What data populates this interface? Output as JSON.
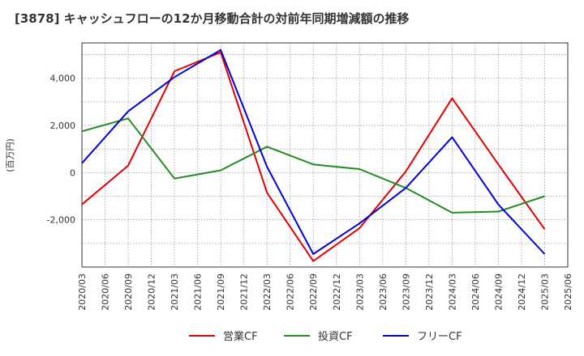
{
  "chart_data": {
    "type": "line",
    "title": "[3878]  キャッシュフローの12か月移動合計の対前年同期増減額の推移",
    "ylabel": "(百万円)",
    "xlabel": "",
    "x": [
      "2020/03",
      "2020/06",
      "2020/09",
      "2020/12",
      "2021/03",
      "2021/06",
      "2021/09",
      "2021/12",
      "2022/03",
      "2022/06",
      "2022/09",
      "2022/12",
      "2023/03",
      "2023/06",
      "2023/09",
      "2023/12",
      "2024/03",
      "2024/06",
      "2024/09",
      "2024/12",
      "2025/03",
      "2025/06"
    ],
    "ylim": [
      -4000,
      5500
    ],
    "yticks": [
      -2000,
      0,
      2000,
      4000
    ],
    "ytick_labels": [
      "-2,000",
      "0",
      "2,000",
      "4,000"
    ],
    "grid": true,
    "legend_position": "bottom",
    "series": [
      {
        "name": "営業CF",
        "color": "#e00000",
        "points": [
          [
            "2020/03",
            -1350
          ],
          [
            "2020/09",
            300
          ],
          [
            "2021/03",
            4300
          ],
          [
            "2021/09",
            5100
          ],
          [
            "2022/03",
            -850
          ],
          [
            "2022/09",
            -3750
          ],
          [
            "2023/03",
            -2350
          ],
          [
            "2023/09",
            50
          ],
          [
            "2024/03",
            3150
          ],
          [
            "2024/09",
            350
          ],
          [
            "2025/03",
            -2400
          ]
        ]
      },
      {
        "name": "投資CF",
        "color": "#228b22",
        "points": [
          [
            "2020/03",
            1750
          ],
          [
            "2020/09",
            2300
          ],
          [
            "2021/03",
            -250
          ],
          [
            "2021/09",
            100
          ],
          [
            "2022/03",
            1100
          ],
          [
            "2022/09",
            350
          ],
          [
            "2023/03",
            150
          ],
          [
            "2023/09",
            -650
          ],
          [
            "2024/03",
            -1700
          ],
          [
            "2024/09",
            -1650
          ],
          [
            "2025/03",
            -1000
          ]
        ]
      },
      {
        "name": "フリーCF",
        "color": "#0000dd",
        "points": [
          [
            "2020/03",
            400
          ],
          [
            "2020/09",
            2600
          ],
          [
            "2021/03",
            4050
          ],
          [
            "2021/09",
            5200
          ],
          [
            "2022/03",
            250
          ],
          [
            "2022/09",
            -3450
          ],
          [
            "2023/03",
            -2150
          ],
          [
            "2023/09",
            -650
          ],
          [
            "2024/03",
            1500
          ],
          [
            "2024/09",
            -1350
          ],
          [
            "2025/03",
            -3450
          ]
        ]
      }
    ]
  }
}
